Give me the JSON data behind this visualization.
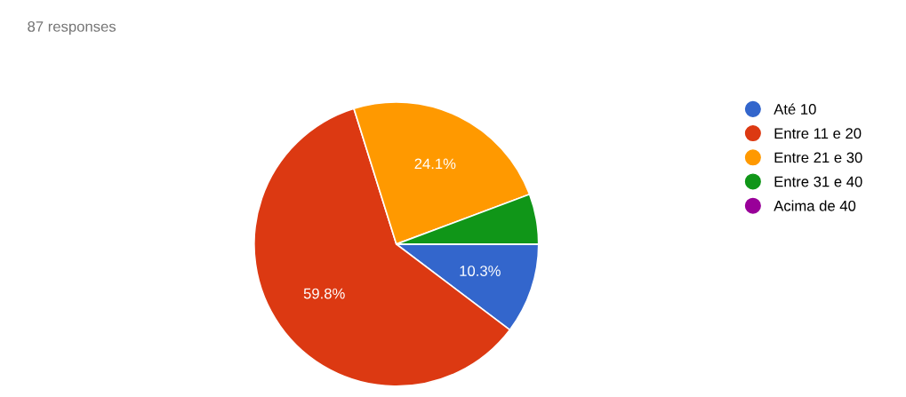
{
  "chart_data": {
    "type": "pie",
    "title": "87 responses",
    "categories": [
      "Até 10",
      "Entre 11 e 20",
      "Entre 21 e 30",
      "Entre 31 e 40",
      "Acima de 40"
    ],
    "values": [
      10.3,
      59.8,
      24.1,
      5.7,
      0
    ],
    "value_labels": [
      "10.3%",
      "59.8%",
      "24.1%",
      null,
      null
    ],
    "colors": [
      "#3366cc",
      "#dc3912",
      "#ff9900",
      "#109618",
      "#990099"
    ],
    "legend": "right"
  }
}
